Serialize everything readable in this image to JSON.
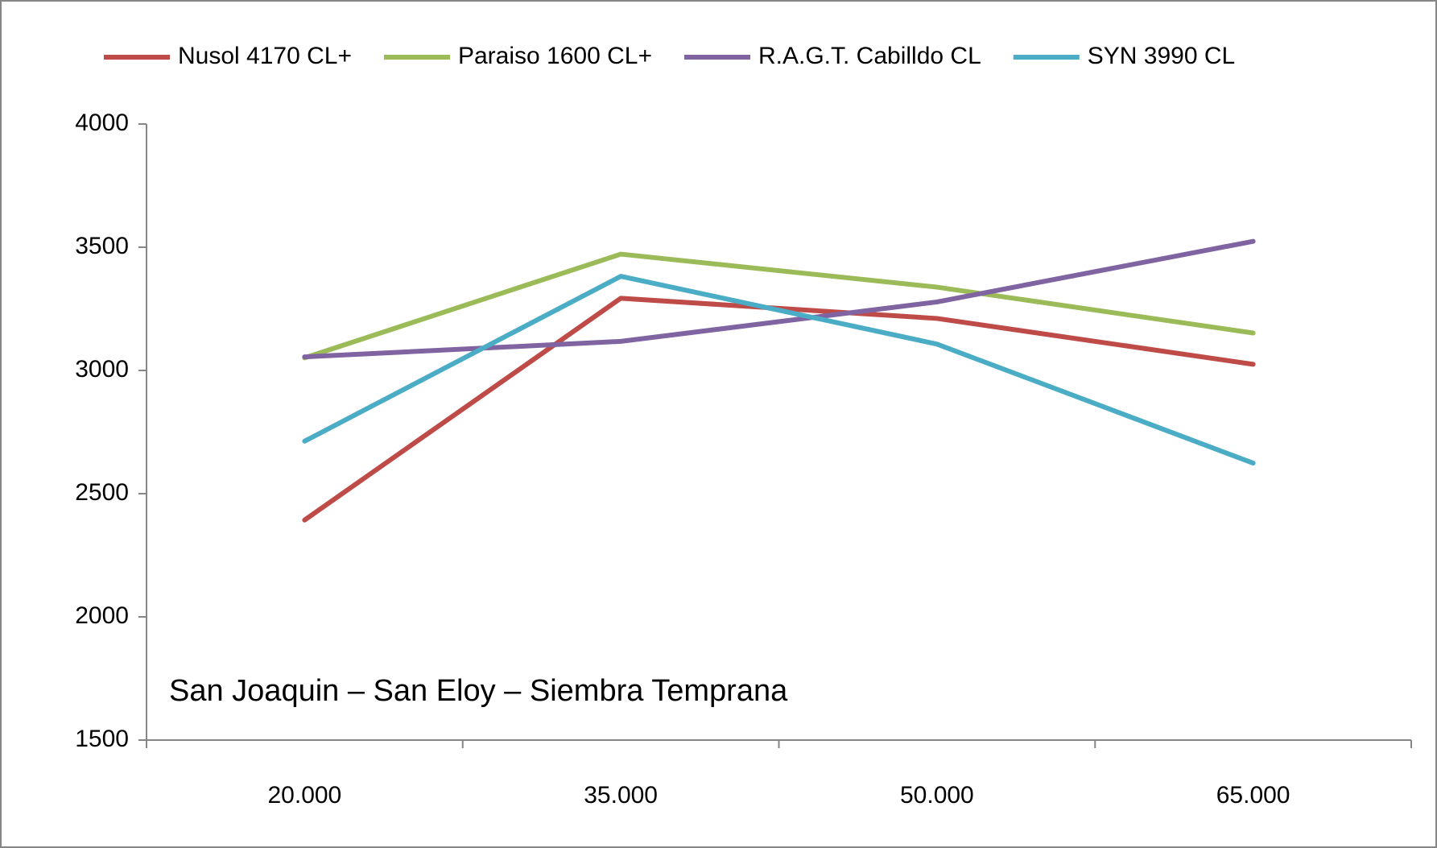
{
  "chart_data": {
    "type": "line",
    "categories": [
      "20.000",
      "35.000",
      "50.000",
      "65.000"
    ],
    "series": [
      {
        "name": "Nusol 4170 CL+",
        "color": "#be4b48",
        "values": [
          2393,
          3293,
          3211,
          3025
        ]
      },
      {
        "name": "Paraiso 1600 CL+",
        "color": "#9bbb59",
        "values": [
          3051,
          3472,
          3338,
          3152
        ]
      },
      {
        "name": "R.A.G.T. Cabilldo  CL",
        "color": "#8064a2",
        "values": [
          3055,
          3118,
          3278,
          3524
        ]
      },
      {
        "name": "SYN 3990 CL",
        "color": "#4bacc6",
        "values": [
          2713,
          3382,
          3107,
          2624
        ]
      }
    ],
    "ylim": [
      1500,
      4000
    ],
    "yticks": [
      1500,
      2000,
      2500,
      3000,
      3500,
      4000
    ],
    "grid": false,
    "legend": "top",
    "annotation": "San Joaquin – San Eloy – Siembra Temprana"
  }
}
